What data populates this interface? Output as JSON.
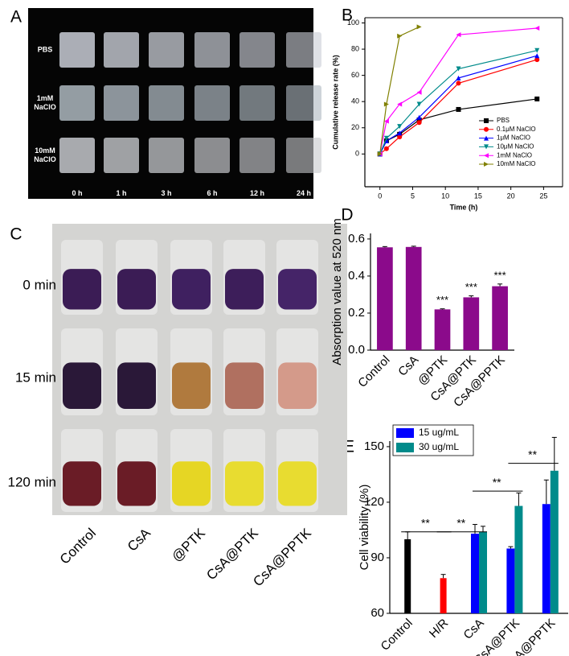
{
  "panel_labels": [
    "A",
    "B",
    "C",
    "D",
    "E"
  ],
  "photo_a": {
    "rows": [
      "PBS",
      "1mM\nNaClO",
      "10mM\nNaClO"
    ],
    "columns": [
      "0 h",
      "1 h",
      "3 h",
      "6 h",
      "12 h",
      "24 h"
    ]
  },
  "photo_c": {
    "rows": [
      "0 min",
      "15 min",
      "120 min"
    ],
    "columns": [
      "Control",
      "CsA",
      "@PTK",
      "CsA@PTK",
      "CsA@PPTK"
    ]
  },
  "chart_data": [
    {
      "type": "line",
      "xlabel": "Time (h)",
      "ylabel": "Cumulative release rate (%)",
      "x": [
        0,
        1,
        3,
        6,
        12,
        24
      ],
      "xlim": [
        -2.3,
        27.9
      ],
      "xticks": [
        0,
        5,
        10,
        15,
        20,
        25
      ],
      "ylim": [
        -25,
        104
      ],
      "yticks": [
        0,
        20,
        40,
        60,
        80,
        100
      ],
      "legend": "lower right",
      "series": [
        {
          "name": "PBS",
          "color": "#000000",
          "values": [
            0,
            10,
            15,
            26,
            34,
            42
          ]
        },
        {
          "name": "0.1μM NaClO",
          "color": "#ff0000",
          "values": [
            0,
            4,
            13,
            24,
            54,
            72
          ]
        },
        {
          "name": "1μM NaClO",
          "color": "#0000ff",
          "values": [
            0,
            10,
            16,
            28,
            58,
            75
          ]
        },
        {
          "name": "10μM NaClO",
          "color": "#008b8b",
          "values": [
            0,
            12,
            21,
            38,
            65,
            79
          ]
        },
        {
          "name": "1mM NaClO",
          "color": "#ff00ff",
          "values": [
            0,
            25,
            38,
            47,
            91,
            96
          ]
        },
        {
          "name": "10mM NaClO",
          "color": "#808000",
          "values": [
            0,
            38,
            90,
            97,
            null,
            null
          ]
        }
      ]
    },
    {
      "type": "bar",
      "ylabel": "Absorption value at 520 nm",
      "categories": [
        "Control",
        "CsA",
        "@PTK",
        "CsA@PTK",
        "CsA@PPTK"
      ],
      "values": [
        0.555,
        0.557,
        0.22,
        0.285,
        0.345
      ],
      "errors": [
        0.004,
        0.004,
        0.003,
        0.008,
        0.012
      ],
      "significance": [
        null,
        null,
        "***",
        "***",
        "***"
      ],
      "color": "#8b0a8b",
      "ylim": [
        0,
        0.63
      ],
      "yticks": [
        {
          "value": 0,
          "label": "0.0"
        },
        0.2,
        0.4,
        0.6
      ]
    },
    {
      "type": "grouped_bar",
      "ylabel": "Cell viability (%)",
      "categories": [
        "Control",
        "H/R",
        "CsA",
        "CsA@PTK",
        "CsA@PPTK"
      ],
      "single": {
        "colors": [
          "#000000",
          "#ff0000",
          null,
          null,
          null
        ],
        "values": [
          100,
          79,
          null,
          null,
          null
        ],
        "errors": [
          4,
          2,
          null,
          null,
          null
        ]
      },
      "series": [
        {
          "name": "15 ug/mL",
          "color": "#0000ff",
          "values": [
            null,
            null,
            103,
            95,
            119
          ],
          "errors": [
            null,
            null,
            5,
            1,
            13
          ]
        },
        {
          "name": "30 ug/mL",
          "color": "#008b8b",
          "values": [
            null,
            null,
            104,
            118,
            137
          ],
          "errors": [
            null,
            null,
            3,
            7,
            18
          ]
        }
      ],
      "brackets": [
        {
          "from": 0,
          "to": 1,
          "y": 104,
          "label": "**"
        },
        {
          "from": 1,
          "to": 2,
          "y": 104,
          "label": "**"
        },
        {
          "from": 2,
          "to": 3,
          "y": 126,
          "label": "**"
        },
        {
          "from": 3,
          "to": 4,
          "y": 141,
          "label": "**"
        }
      ],
      "ylim": [
        60,
        153
      ],
      "yticks": [
        60,
        90,
        120,
        150
      ]
    }
  ]
}
